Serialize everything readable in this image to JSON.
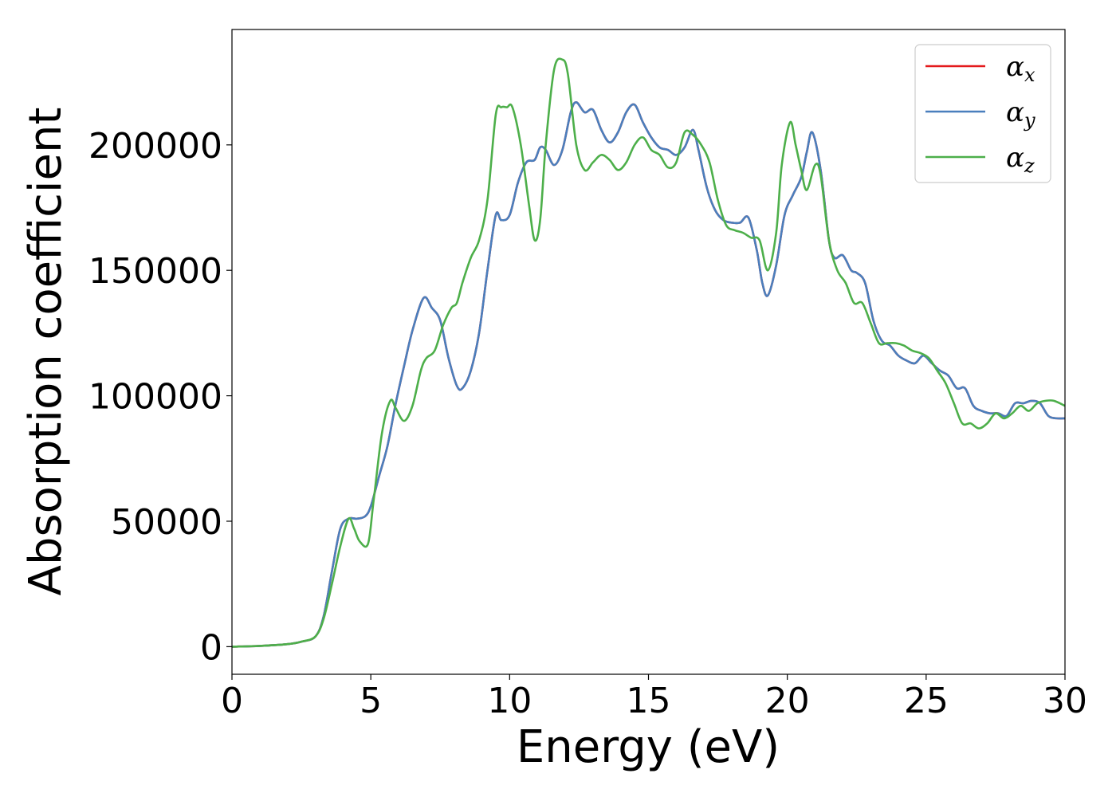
{
  "chart_data": {
    "type": "line",
    "xlabel": "Energy (eV)",
    "ylabel": "Absorption coefficient",
    "xlim": [
      0,
      30
    ],
    "ylim": [
      -11000,
      246000
    ],
    "xticks": [
      0,
      5,
      10,
      15,
      20,
      25,
      30
    ],
    "yticks": [
      0,
      50000,
      100000,
      150000,
      200000
    ],
    "grid": false,
    "legend_position": "top-right",
    "series": [
      {
        "name": "α_x",
        "legend_symbol": "α",
        "legend_sub": "x",
        "color": "#e41a1c",
        "x": [
          0,
          1,
          2,
          2.5,
          3,
          3.3,
          3.6,
          3.9,
          4.2,
          4.5,
          4.8,
          5.0,
          5.3,
          5.6,
          5.9,
          6.2,
          6.5,
          6.9,
          7.2,
          7.5,
          7.8,
          8.1,
          8.3,
          8.6,
          8.9,
          9.2,
          9.5,
          9.7,
          10.0,
          10.3,
          10.6,
          10.9,
          11.1,
          11.3,
          11.6,
          11.9,
          12.2,
          12.4,
          12.7,
          13.0,
          13.3,
          13.6,
          13.9,
          14.2,
          14.5,
          14.8,
          15.1,
          15.4,
          15.7,
          16.0,
          16.3,
          16.6,
          16.8,
          17.1,
          17.4,
          17.7,
          18.0,
          18.3,
          18.6,
          18.9,
          19.1,
          19.3,
          19.6,
          19.9,
          20.2,
          20.5,
          20.7,
          20.9,
          21.2,
          21.5,
          21.7,
          22.0,
          22.3,
          22.5,
          22.8,
          23.1,
          23.4,
          23.7,
          24.0,
          24.3,
          24.6,
          24.9,
          25.2,
          25.5,
          25.8,
          26.1,
          26.4,
          26.7,
          27.0,
          27.3,
          27.6,
          27.9,
          28.2,
          28.5,
          28.8,
          29.1,
          29.4,
          29.7,
          30.0
        ],
        "y": [
          0,
          300,
          1000,
          2000,
          4000,
          12000,
          30000,
          47000,
          51000,
          51000,
          52000,
          56000,
          68000,
          80000,
          97000,
          112000,
          126000,
          139000,
          135000,
          130000,
          115000,
          104000,
          103000,
          110000,
          125000,
          150000,
          172000,
          170000,
          172000,
          185000,
          193000,
          194000,
          199000,
          198000,
          192000,
          198000,
          213000,
          217000,
          213000,
          214000,
          206000,
          201000,
          205000,
          213000,
          216000,
          209000,
          203000,
          199000,
          198000,
          196000,
          199000,
          206000,
          198000,
          183000,
          174000,
          170000,
          169000,
          169000,
          171000,
          158000,
          145000,
          140000,
          152000,
          172000,
          180000,
          187000,
          197000,
          205000,
          190000,
          162000,
          155000,
          156000,
          150000,
          149000,
          145000,
          130000,
          122000,
          120000,
          116000,
          114000,
          113000,
          116000,
          113000,
          110000,
          108000,
          103000,
          103000,
          96000,
          94000,
          93000,
          93000,
          92000,
          97000,
          97000,
          98000,
          97000,
          92000,
          91000,
          91000
        ]
      },
      {
        "name": "α_y",
        "legend_symbol": "α",
        "legend_sub": "y",
        "color": "#4a7fbd",
        "x": [
          0,
          1,
          2,
          2.5,
          3,
          3.3,
          3.6,
          3.9,
          4.2,
          4.5,
          4.8,
          5.0,
          5.3,
          5.6,
          5.9,
          6.2,
          6.5,
          6.9,
          7.2,
          7.5,
          7.8,
          8.1,
          8.3,
          8.6,
          8.9,
          9.2,
          9.5,
          9.7,
          10.0,
          10.3,
          10.6,
          10.9,
          11.1,
          11.3,
          11.6,
          11.9,
          12.2,
          12.4,
          12.7,
          13.0,
          13.3,
          13.6,
          13.9,
          14.2,
          14.5,
          14.8,
          15.1,
          15.4,
          15.7,
          16.0,
          16.3,
          16.6,
          16.8,
          17.1,
          17.4,
          17.7,
          18.0,
          18.3,
          18.6,
          18.9,
          19.1,
          19.3,
          19.6,
          19.9,
          20.2,
          20.5,
          20.7,
          20.9,
          21.2,
          21.5,
          21.7,
          22.0,
          22.3,
          22.5,
          22.8,
          23.1,
          23.4,
          23.7,
          24.0,
          24.3,
          24.6,
          24.9,
          25.2,
          25.5,
          25.8,
          26.1,
          26.4,
          26.7,
          27.0,
          27.3,
          27.6,
          27.9,
          28.2,
          28.5,
          28.8,
          29.1,
          29.4,
          29.7,
          30.0
        ],
        "y": [
          0,
          300,
          1000,
          2000,
          4000,
          12000,
          30000,
          47000,
          51000,
          51000,
          52000,
          56000,
          68000,
          80000,
          97000,
          112000,
          126000,
          139000,
          135000,
          130000,
          115000,
          104000,
          103000,
          110000,
          125000,
          150000,
          172000,
          170000,
          172000,
          185000,
          193000,
          194000,
          199000,
          198000,
          192000,
          198000,
          213000,
          217000,
          213000,
          214000,
          206000,
          201000,
          205000,
          213000,
          216000,
          209000,
          203000,
          199000,
          198000,
          196000,
          199000,
          206000,
          198000,
          183000,
          174000,
          170000,
          169000,
          169000,
          171000,
          158000,
          145000,
          140000,
          152000,
          172000,
          180000,
          187000,
          197000,
          205000,
          190000,
          162000,
          155000,
          156000,
          150000,
          149000,
          145000,
          130000,
          122000,
          120000,
          116000,
          114000,
          113000,
          116000,
          113000,
          110000,
          108000,
          103000,
          103000,
          96000,
          94000,
          93000,
          93000,
          92000,
          97000,
          97000,
          98000,
          97000,
          92000,
          91000,
          91000
        ]
      },
      {
        "name": "α_z",
        "legend_symbol": "α",
        "legend_sub": "z",
        "color": "#4daf4a",
        "x": [
          0,
          1,
          2,
          2.5,
          3,
          3.3,
          3.6,
          3.9,
          4.2,
          4.4,
          4.6,
          4.9,
          5.1,
          5.4,
          5.7,
          5.9,
          6.2,
          6.5,
          6.8,
          7.0,
          7.3,
          7.6,
          7.9,
          8.1,
          8.3,
          8.6,
          8.9,
          9.2,
          9.5,
          9.7,
          9.9,
          10.1,
          10.4,
          10.7,
          10.9,
          11.1,
          11.3,
          11.6,
          11.9,
          12.1,
          12.4,
          12.7,
          13.0,
          13.3,
          13.6,
          13.9,
          14.2,
          14.5,
          14.8,
          15.1,
          15.4,
          15.7,
          16.0,
          16.3,
          16.6,
          16.9,
          17.2,
          17.5,
          17.8,
          18.1,
          18.4,
          18.7,
          19.0,
          19.3,
          19.6,
          19.8,
          20.1,
          20.3,
          20.5,
          20.7,
          21.0,
          21.2,
          21.5,
          21.8,
          22.1,
          22.4,
          22.7,
          23.0,
          23.3,
          23.6,
          23.9,
          24.2,
          24.5,
          24.8,
          25.1,
          25.4,
          25.7,
          26.0,
          26.3,
          26.6,
          26.9,
          27.2,
          27.5,
          27.8,
          28.1,
          28.4,
          28.7,
          29.0,
          29.3,
          29.6,
          30.0
        ],
        "y": [
          0,
          300,
          1000,
          2000,
          4000,
          11000,
          25000,
          40000,
          51000,
          47000,
          42000,
          41000,
          58000,
          85000,
          98000,
          95000,
          90000,
          96000,
          110000,
          115000,
          118000,
          128000,
          135000,
          137000,
          145000,
          155000,
          162000,
          178000,
          212000,
          215000,
          215000,
          215000,
          200000,
          176000,
          162000,
          170000,
          200000,
          230000,
          234000,
          228000,
          200000,
          190000,
          193000,
          196000,
          194000,
          190000,
          193000,
          200000,
          203000,
          198000,
          196000,
          191000,
          193000,
          205000,
          204000,
          200000,
          193000,
          178000,
          168000,
          166000,
          165000,
          163000,
          162000,
          150000,
          165000,
          192000,
          209000,
          200000,
          190000,
          182000,
          192000,
          188000,
          162000,
          150000,
          145000,
          137000,
          137000,
          129000,
          121000,
          121000,
          121000,
          120000,
          118000,
          117000,
          115000,
          110000,
          105000,
          97000,
          89000,
          89000,
          87000,
          89000,
          93000,
          91000,
          93000,
          96000,
          94000,
          97000,
          98000,
          98000,
          96000
        ]
      }
    ]
  }
}
